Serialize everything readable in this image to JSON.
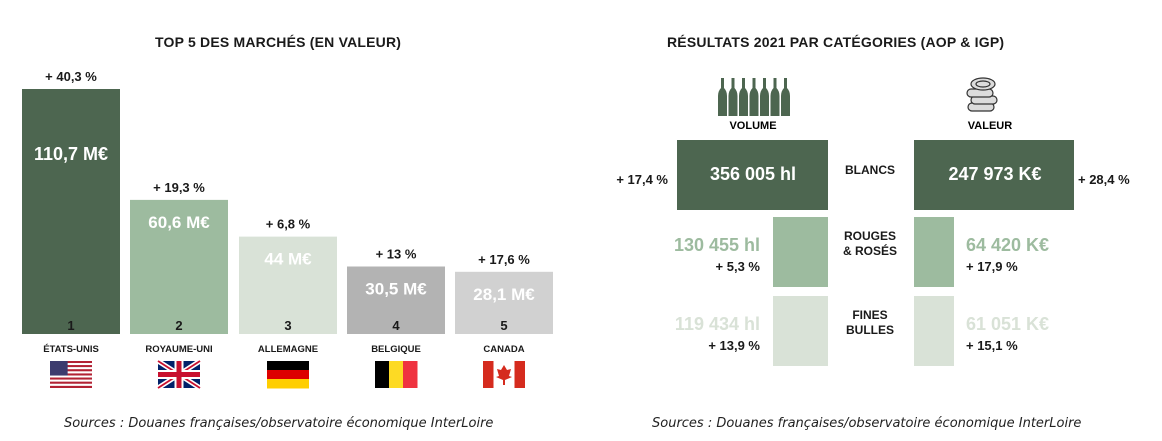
{
  "left": {
    "title": "TOP 5 DES MARCHÉS (EN VALEUR)",
    "source": "Sources : Douanes françaises/observatoire économique InterLoire"
  },
  "right": {
    "title": "RÉSULTATS 2021 PAR CATÉGORIES (AOP & IGP)",
    "source": "Sources : Douanes françaises/observatoire économique InterLoire",
    "volume_label": "VOLUME",
    "valeur_label": "VALEUR"
  },
  "chart_data": [
    {
      "type": "bar",
      "title": "TOP 5 DES MARCHÉS (EN VALEUR)",
      "categories": [
        "ÉTATS-UNIS",
        "ROYAUME-UNI",
        "ALLEMAGNE",
        "BELGIQUE",
        "CANADA"
      ],
      "ranks": [
        "1",
        "2",
        "3",
        "4",
        "5"
      ],
      "values": [
        110.7,
        60.6,
        44,
        30.5,
        28.1
      ],
      "value_labels": [
        "110,7 M€",
        "60,6 M€",
        "44 M€",
        "30,5 M€",
        "28,1 M€"
      ],
      "growth_labels": [
        "+ 40,3 %",
        "+ 19,3 %",
        "+ 6,8 %",
        "+ 13 %",
        "+ 17,6 %"
      ],
      "unit": "M€",
      "flags": [
        "us-flag",
        "uk-flag",
        "germany-flag",
        "belgium-flag",
        "canada-flag"
      ],
      "colors": [
        "#4d6650",
        "#9dbb9f",
        "#d9e2d7",
        "#b3b3b3",
        "#d1d1d1"
      ]
    },
    {
      "type": "bar",
      "title": "RÉSULTATS 2021 PAR CATÉGORIES (AOP & IGP)",
      "categories": [
        "BLANCS",
        "ROUGES & ROSÉS",
        "FINES BULLES"
      ],
      "category_lines": [
        [
          "BLANCS"
        ],
        [
          "ROUGES",
          "& ROSÉS"
        ],
        [
          "FINES",
          "BULLES"
        ]
      ],
      "series": [
        {
          "name": "VOLUME",
          "unit": "hl",
          "values": [
            356005,
            130455,
            119434
          ],
          "value_labels": [
            "356 005 hl",
            "130 455 hl",
            "119 434 hl"
          ],
          "growth_labels": [
            "+ 17,4 %",
            "+ 5,3 %",
            "+ 13,9 %"
          ]
        },
        {
          "name": "VALEUR",
          "unit": "K€",
          "values": [
            247973,
            64420,
            61051
          ],
          "value_labels": [
            "247 973 K€",
            "64 420 K€",
            "61 051 K€"
          ],
          "growth_labels": [
            "+ 28,4 %",
            "+ 17,9 %",
            "+ 15,1 %"
          ]
        }
      ],
      "icons": [
        "wine-bottles-icon",
        "coins-icon"
      ],
      "colors": [
        "#4d6650",
        "#9dbb9f",
        "#d9e2d7"
      ]
    }
  ]
}
